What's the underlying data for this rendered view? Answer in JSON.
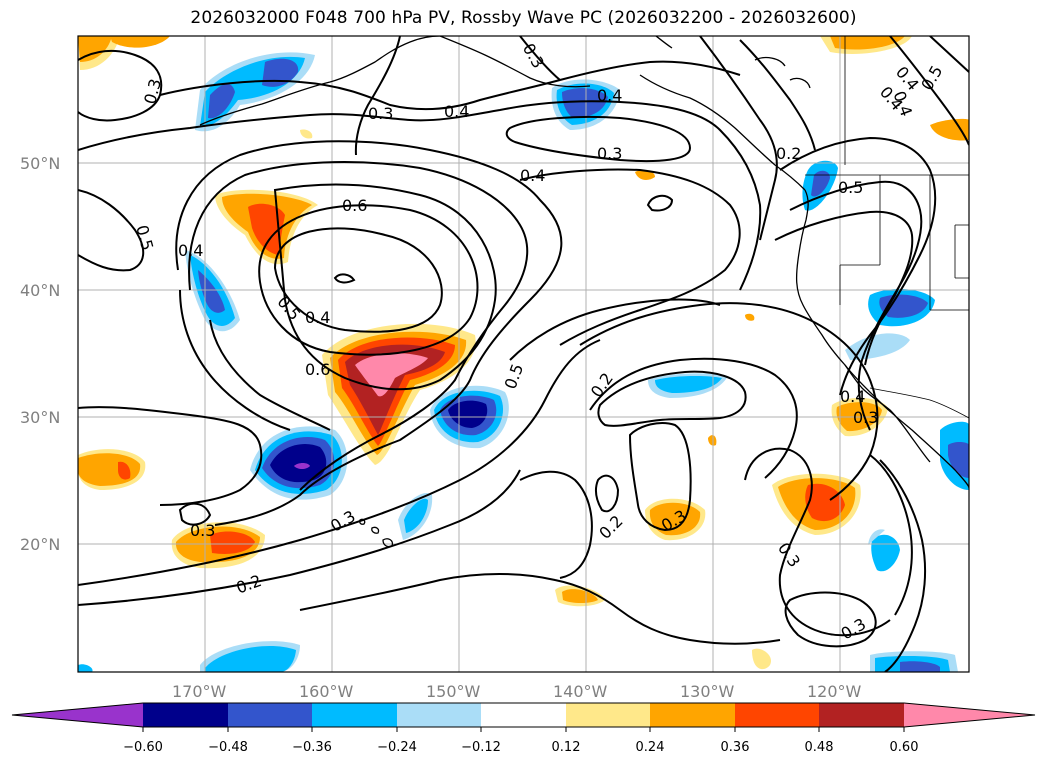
{
  "title": "2026032000 F048 700 hPa PV, Rossby Wave PC (2026032200 - 2026032600)",
  "lat_labels": [
    "50°N",
    "40°N",
    "30°N",
    "20°N"
  ],
  "lon_labels": [
    "170°W",
    "160°W",
    "150°W",
    "140°W",
    "130°W",
    "120°W"
  ],
  "contour_labels": [
    "0.3",
    "0.3",
    "0.3",
    "0.4",
    "0.4",
    "0.3",
    "0.4",
    "0.2",
    "0.5",
    "0.6",
    "0.5",
    "0.4",
    "0.5",
    "0.4",
    "0.6",
    "0.5",
    "0.2",
    "0.4",
    "0.3",
    "0.3",
    "0.2",
    "0.3",
    "0.3",
    "0.3",
    "0.2",
    "0.3",
    "0.4",
    "0.4",
    "0.5",
    "0.4"
  ],
  "colorbar": {
    "ticks": [
      "−0.60",
      "−0.48",
      "−0.36",
      "−0.24",
      "−0.12",
      "0.12",
      "0.24",
      "0.36",
      "0.48",
      "0.60"
    ],
    "colors": [
      "#9933cc",
      "#00008b",
      "#3355cc",
      "#00bbff",
      "#aaddf7",
      "#ffffff",
      "#ffe88a",
      "#ffa500",
      "#ff4500",
      "#b22222",
      "#ff88aa"
    ]
  },
  "colors": {
    "pink": "#ff88aa",
    "darkred": "#b22222",
    "red": "#ff4500",
    "orange": "#ffa500",
    "yellow": "#ffe88a",
    "lightblue": "#aaddf7",
    "cyan": "#00bbff",
    "blue": "#3355cc",
    "navy": "#00008b",
    "purple": "#9933cc"
  }
}
